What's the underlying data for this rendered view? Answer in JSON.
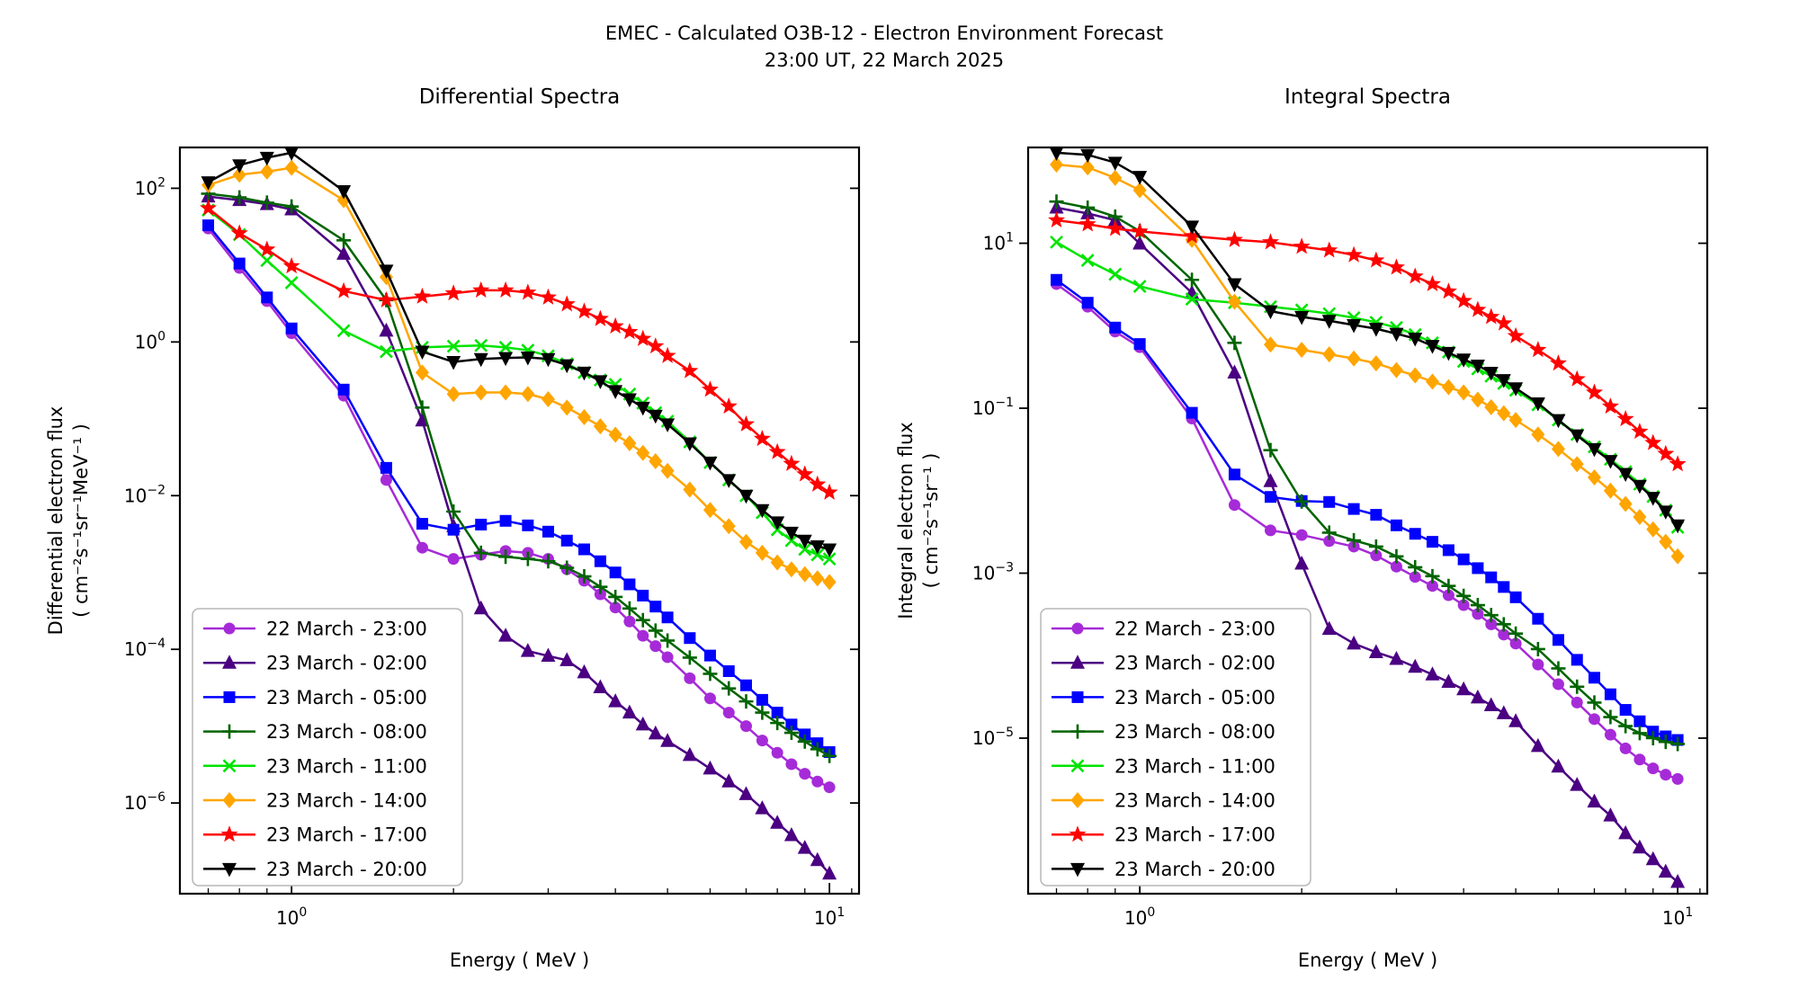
{
  "header": {
    "title_line1": "EMEC - Calculated O3B-12 - Electron Environment Forecast",
    "title_line2": "23:00 UT, 22 March 2025"
  },
  "chart_data": {
    "type": "line",
    "grid": false,
    "legend_position": "lower left",
    "xlabel": "Energy ( MeV )",
    "x_scale": "log",
    "y_scale": "log",
    "x": [
      0.7,
      0.8,
      0.9,
      1.0,
      1.25,
      1.5,
      1.75,
      2.0,
      2.25,
      2.5,
      2.75,
      3.0,
      3.25,
      3.5,
      3.75,
      4.0,
      4.25,
      4.5,
      4.75,
      5.0,
      5.5,
      6.0,
      6.5,
      7.0,
      7.5,
      8.0,
      8.5,
      9.0,
      9.5,
      10.0
    ],
    "x_minor_ticks": [
      0.7,
      0.8,
      0.9,
      2,
      3,
      4,
      5,
      6,
      7,
      8,
      9,
      11
    ],
    "panels": [
      {
        "key": "differential",
        "title": "Differential Spectra",
        "ylabel": [
          "Differential electron flux",
          "( cm⁻²s⁻¹sr⁻¹MeV⁻¹ )"
        ],
        "xlim": [
          0.62,
          11.35
        ],
        "ylim": [
          6.6e-08,
          340
        ],
        "xtick_exponents": [
          0,
          1
        ],
        "ytick_exponents": [
          2,
          0,
          -2,
          -4,
          -6
        ]
      },
      {
        "key": "integral",
        "title": "Integral Spectra",
        "ylabel": [
          "Integral electron flux",
          "( cm⁻²s⁻¹sr⁻¹ )"
        ],
        "xlim": [
          0.62,
          11.35
        ],
        "ylim": [
          1.3e-07,
          145
        ],
        "xtick_exponents": [
          0,
          1
        ],
        "ytick_exponents": [
          1,
          -1,
          -3,
          -5
        ]
      }
    ],
    "series": [
      {
        "name": "22 March - 23:00",
        "color": "#A62BD8",
        "marker": "circle",
        "differential": [
          30,
          9.2,
          3.4,
          1.3,
          0.2,
          0.016,
          0.0021,
          0.0015,
          0.0017,
          0.0019,
          0.0018,
          0.0015,
          0.0011,
          0.00078,
          0.00052,
          0.00035,
          0.00023,
          0.00015,
          0.00011,
          7.9e-05,
          4.2e-05,
          2.3e-05,
          1.5e-05,
          1e-05,
          6.5e-06,
          4.5e-06,
          3.2e-06,
          2.4e-06,
          1.9e-06,
          1.6e-06
        ],
        "integral": [
          3.2,
          1.7,
          0.85,
          0.55,
          0.075,
          0.0067,
          0.0033,
          0.0029,
          0.00245,
          0.0021,
          0.00164,
          0.0012,
          0.0009,
          0.0007,
          0.00054,
          0.00041,
          0.00032,
          0.00024,
          0.00018,
          0.00014,
          7.8e-05,
          4.5e-05,
          2.7e-05,
          1.7e-05,
          1.1e-05,
          7.5e-06,
          5.5e-06,
          4.3e-06,
          3.6e-06,
          3.2e-06
        ]
      },
      {
        "name": "23 March - 02:00",
        "color": "#4B0082",
        "marker": "triangle-up",
        "differential": [
          78,
          70,
          62,
          53,
          14,
          1.4,
          0.095,
          0.004,
          0.00034,
          0.00015,
          9.5e-05,
          8.2e-05,
          7.2e-05,
          5e-05,
          3.2e-05,
          2.1e-05,
          1.5e-05,
          1.05e-05,
          8e-06,
          6.4e-06,
          4.2e-06,
          2.8e-06,
          1.9e-06,
          1.3e-06,
          8.5e-07,
          5.5e-07,
          3.8e-07,
          2.6e-07,
          1.8e-07,
          1.2e-07
        ],
        "integral": [
          27,
          23,
          19,
          9.9,
          2.5,
          0.27,
          0.013,
          0.0013,
          0.00021,
          0.00014,
          0.00011,
          9.1e-05,
          7.3e-05,
          5.9e-05,
          4.8e-05,
          3.9e-05,
          3.1e-05,
          2.5e-05,
          2e-05,
          1.6e-05,
          8e-06,
          4.5e-06,
          2.7e-06,
          1.7e-06,
          1.15e-06,
          7e-07,
          4.7e-07,
          3.4e-07,
          2.4e-07,
          1.8e-07
        ]
      },
      {
        "name": "23 March - 05:00",
        "color": "#0000FF",
        "marker": "square",
        "differential": [
          33,
          10.5,
          3.8,
          1.5,
          0.24,
          0.023,
          0.0043,
          0.0036,
          0.0042,
          0.0047,
          0.0041,
          0.0034,
          0.0026,
          0.002,
          0.0014,
          0.001,
          0.0007,
          0.0005,
          0.00036,
          0.00026,
          0.00014,
          8.3e-05,
          5.2e-05,
          3.4e-05,
          2.2e-05,
          1.5e-05,
          1.05e-05,
          7.8e-06,
          6e-06,
          4.6e-06
        ],
        "integral": [
          3.6,
          1.9,
          0.95,
          0.6,
          0.088,
          0.0157,
          0.0084,
          0.0075,
          0.0073,
          0.006,
          0.0051,
          0.0038,
          0.003,
          0.0024,
          0.0019,
          0.00147,
          0.00115,
          0.00089,
          0.00068,
          0.00051,
          0.00028,
          0.000155,
          8.9e-05,
          5.4e-05,
          3.4e-05,
          2.2e-05,
          1.6e-05,
          1.2e-05,
          1.05e-05,
          9.5e-06
        ]
      },
      {
        "name": "23 March - 08:00",
        "color": "#006400",
        "marker": "plus",
        "differential": [
          85,
          76,
          65,
          58,
          21,
          3.5,
          0.14,
          0.0062,
          0.0018,
          0.0016,
          0.0015,
          0.0014,
          0.00115,
          0.00089,
          0.00065,
          0.00048,
          0.00034,
          0.00024,
          0.000175,
          0.00013,
          7.8e-05,
          4.8e-05,
          3.1e-05,
          2.1e-05,
          1.5e-05,
          1.1e-05,
          8.2e-06,
          6.3e-06,
          5e-06,
          4.1e-06
        ],
        "integral": [
          32,
          27,
          21,
          14,
          3.6,
          0.62,
          0.031,
          0.0074,
          0.0031,
          0.0025,
          0.0021,
          0.0016,
          0.00118,
          0.00092,
          0.0007,
          0.00053,
          0.00041,
          0.00031,
          0.00024,
          0.000185,
          0.00012,
          7e-05,
          4.2e-05,
          2.7e-05,
          1.8e-05,
          1.4e-05,
          1.15e-05,
          1e-05,
          9e-06,
          8.5e-06
        ]
      },
      {
        "name": "23 March - 11:00",
        "color": "#00E400",
        "marker": "x",
        "differential": [
          52,
          25,
          11.5,
          5.9,
          1.4,
          0.75,
          0.85,
          0.88,
          0.9,
          0.85,
          0.78,
          0.66,
          0.52,
          0.4,
          0.32,
          0.28,
          0.21,
          0.16,
          0.12,
          0.093,
          0.05,
          0.027,
          0.016,
          0.01,
          0.006,
          0.0036,
          0.0026,
          0.002,
          0.0017,
          0.0015
        ],
        "integral": [
          10.3,
          6.2,
          4.2,
          3.0,
          2.1,
          1.9,
          1.7,
          1.55,
          1.4,
          1.25,
          1.1,
          0.95,
          0.78,
          0.62,
          0.48,
          0.37,
          0.3,
          0.245,
          0.2,
          0.165,
          0.11,
          0.072,
          0.048,
          0.034,
          0.024,
          0.017,
          0.012,
          0.0085,
          0.0058,
          0.0036
        ]
      },
      {
        "name": "23 March - 14:00",
        "color": "#FFA500",
        "marker": "diamond",
        "differential": [
          110,
          150,
          165,
          185,
          70,
          7.0,
          0.4,
          0.21,
          0.22,
          0.22,
          0.21,
          0.18,
          0.14,
          0.105,
          0.08,
          0.062,
          0.048,
          0.036,
          0.028,
          0.021,
          0.012,
          0.0065,
          0.004,
          0.0025,
          0.0018,
          0.00135,
          0.0011,
          0.00095,
          0.00084,
          0.00075
        ],
        "integral": [
          90,
          83,
          62,
          44,
          11,
          1.95,
          0.59,
          0.51,
          0.45,
          0.4,
          0.35,
          0.29,
          0.25,
          0.21,
          0.18,
          0.155,
          0.127,
          0.103,
          0.087,
          0.072,
          0.048,
          0.032,
          0.021,
          0.0145,
          0.01,
          0.0069,
          0.0048,
          0.0034,
          0.0024,
          0.0016
        ]
      },
      {
        "name": "23 March - 17:00",
        "color": "#FF0000",
        "marker": "star",
        "differential": [
          55,
          26,
          16,
          9.7,
          4.6,
          3.5,
          3.9,
          4.3,
          4.7,
          4.7,
          4.4,
          3.8,
          3.1,
          2.5,
          2.0,
          1.6,
          1.35,
          1.1,
          0.88,
          0.66,
          0.42,
          0.24,
          0.145,
          0.085,
          0.055,
          0.037,
          0.026,
          0.019,
          0.014,
          0.011
        ],
        "integral": [
          19,
          17,
          15,
          13.9,
          12.2,
          11,
          10.3,
          9.1,
          8.2,
          7.2,
          6.2,
          5.1,
          3.96,
          3.2,
          2.6,
          2.0,
          1.56,
          1.28,
          1.07,
          0.75,
          0.51,
          0.35,
          0.225,
          0.155,
          0.105,
          0.074,
          0.052,
          0.038,
          0.028,
          0.021
        ]
      },
      {
        "name": "23 March - 20:00",
        "color": "#000000",
        "marker": "triangle-down",
        "differential": [
          120,
          200,
          250,
          290,
          92,
          8.5,
          0.75,
          0.55,
          0.6,
          0.62,
          0.63,
          0.6,
          0.5,
          0.4,
          0.31,
          0.23,
          0.18,
          0.14,
          0.11,
          0.085,
          0.048,
          0.027,
          0.016,
          0.01,
          0.0065,
          0.0045,
          0.0033,
          0.0026,
          0.0022,
          0.002
        ],
        "integral": [
          125,
          118,
          95,
          64,
          16,
          3.2,
          1.5,
          1.28,
          1.15,
          1.02,
          0.92,
          0.8,
          0.7,
          0.57,
          0.47,
          0.39,
          0.33,
          0.27,
          0.22,
          0.175,
          0.115,
          0.072,
          0.047,
          0.032,
          0.023,
          0.016,
          0.0115,
          0.0082,
          0.0056,
          0.0038
        ]
      }
    ]
  }
}
